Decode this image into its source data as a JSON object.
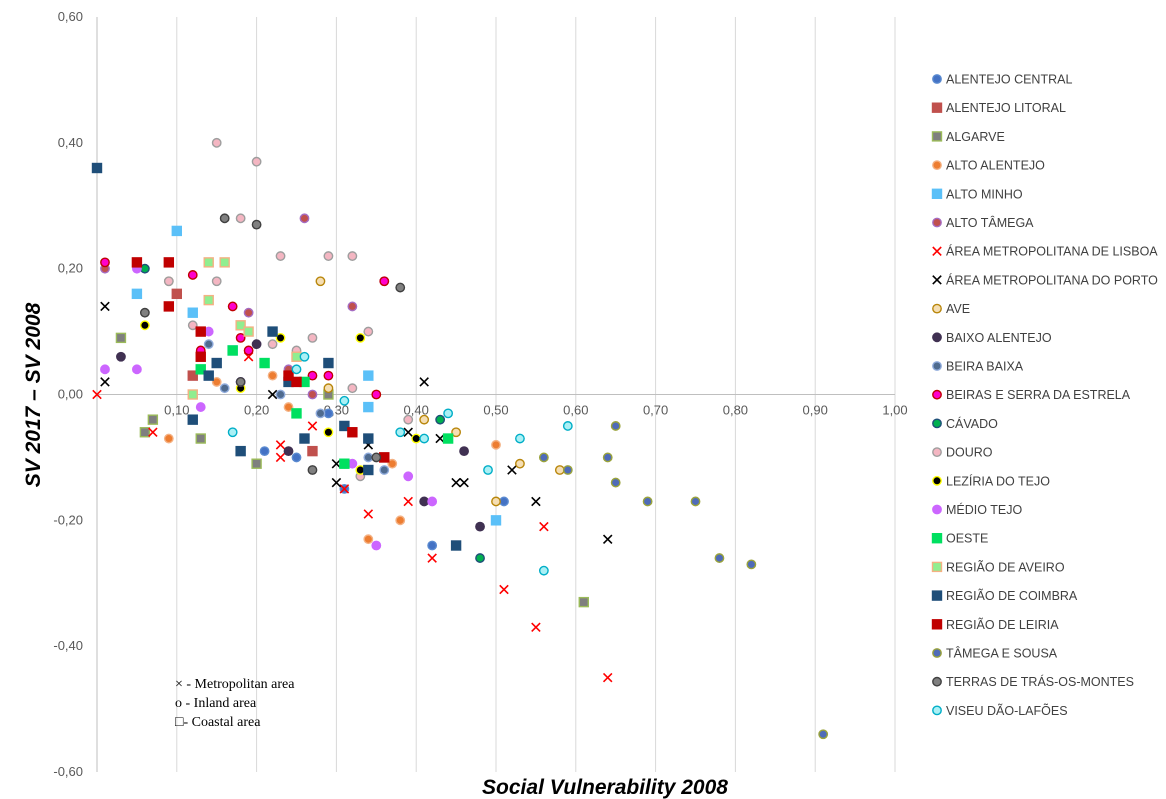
{
  "chart_data": {
    "type": "scatter",
    "title": "",
    "xlabel": "Social Vulnerability 2008",
    "ylabel": "SV 2017 – SV 2008",
    "xlim": [
      0,
      1
    ],
    "ylim": [
      -0.6,
      0.6
    ],
    "x_ticks": [
      "0,00",
      "0,10",
      "0,20",
      "0,30",
      "0,40",
      "0,50",
      "0,60",
      "0,70",
      "0,80",
      "0,90",
      "1,00"
    ],
    "y_ticks": [
      "0,60",
      "0,40",
      "0,20",
      "0,00",
      "-0,20",
      "-0,40",
      "-0,60"
    ],
    "grid": "vertical",
    "legend_position": "right",
    "notes": [
      "× - Metropolitan area",
      "o - Inland area",
      "□- Coastal area"
    ],
    "series": [
      {
        "name": "ALENTEJO CENTRAL",
        "marker": "circle",
        "color": "#4472c4",
        "stroke": "#5a8ad0",
        "points": [
          [
            0.12,
            0.03
          ],
          [
            0.21,
            -0.09
          ],
          [
            0.31,
            -0.15
          ],
          [
            0.42,
            -0.24
          ],
          [
            0.51,
            -0.17
          ],
          [
            0.25,
            -0.1
          ],
          [
            0.18,
            0.02
          ],
          [
            0.29,
            -0.03
          ]
        ]
      },
      {
        "name": "ALENTEJO LITORAL",
        "marker": "square",
        "color": "#c0504d",
        "stroke": "#c0504d",
        "points": [
          [
            0.1,
            0.16
          ],
          [
            0.36,
            -0.1
          ],
          [
            0.27,
            -0.09
          ],
          [
            0.12,
            0.03
          ]
        ]
      },
      {
        "name": "ALGARVE",
        "marker": "square",
        "color": "#7f7f7f",
        "stroke": "#9bbb59",
        "points": [
          [
            0.03,
            0.09
          ],
          [
            0.07,
            -0.04
          ],
          [
            0.13,
            -0.07
          ],
          [
            0.2,
            -0.11
          ],
          [
            0.29,
            0.0
          ],
          [
            0.61,
            -0.33
          ],
          [
            0.06,
            -0.06
          ]
        ]
      },
      {
        "name": "ALTO ALENTEJO",
        "marker": "circle",
        "color": "#ed7d31",
        "stroke": "#f4b183",
        "points": [
          [
            0.09,
            0.18
          ],
          [
            0.22,
            0.03
          ],
          [
            0.34,
            -0.23
          ],
          [
            0.38,
            -0.2
          ],
          [
            0.5,
            -0.08
          ],
          [
            0.09,
            -0.07
          ],
          [
            0.15,
            0.02
          ],
          [
            0.37,
            -0.11
          ],
          [
            0.24,
            -0.02
          ]
        ]
      },
      {
        "name": "ALTO MINHO",
        "marker": "square",
        "color": "#5bc0f8",
        "stroke": "#5bc0f8",
        "points": [
          [
            0.1,
            0.26
          ],
          [
            0.05,
            0.16
          ],
          [
            0.12,
            0.13
          ],
          [
            0.34,
            0.03
          ],
          [
            0.5,
            -0.2
          ],
          [
            0.17,
            0.07
          ],
          [
            0.34,
            -0.02
          ]
        ]
      },
      {
        "name": "ALTO TÂMEGA",
        "marker": "circle",
        "color": "#c0504d",
        "stroke": "#a56cc1",
        "points": [
          [
            0.26,
            0.28
          ],
          [
            0.01,
            0.2
          ],
          [
            0.36,
            0.18
          ],
          [
            0.19,
            0.13
          ],
          [
            0.32,
            0.14
          ],
          [
            0.24,
            0.04
          ],
          [
            0.27,
            0.0
          ]
        ]
      },
      {
        "name": "ÁREA METROPOLITANA DE LISBOA",
        "marker": "x",
        "color": "#ff0000",
        "stroke": "#ff0000",
        "points": [
          [
            0.0,
            0.0
          ],
          [
            0.07,
            -0.06
          ],
          [
            0.19,
            0.06
          ],
          [
            0.23,
            -0.1
          ],
          [
            0.31,
            -0.15
          ],
          [
            0.34,
            -0.19
          ],
          [
            0.39,
            -0.17
          ],
          [
            0.42,
            -0.26
          ],
          [
            0.51,
            -0.31
          ],
          [
            0.56,
            -0.21
          ],
          [
            0.55,
            -0.37
          ],
          [
            0.64,
            -0.45
          ],
          [
            0.23,
            -0.08
          ],
          [
            0.27,
            -0.05
          ]
        ]
      },
      {
        "name": "ÁREA METROPOLITANA DO PORTO",
        "marker": "x",
        "color": "#000000",
        "stroke": "#000000",
        "points": [
          [
            0.01,
            0.14
          ],
          [
            0.01,
            0.02
          ],
          [
            0.22,
            0.0
          ],
          [
            0.3,
            -0.11
          ],
          [
            0.34,
            -0.08
          ],
          [
            0.39,
            -0.06
          ],
          [
            0.41,
            0.02
          ],
          [
            0.43,
            -0.07
          ],
          [
            0.45,
            -0.14
          ],
          [
            0.52,
            -0.12
          ],
          [
            0.55,
            -0.17
          ],
          [
            0.64,
            -0.23
          ],
          [
            0.3,
            -0.14
          ],
          [
            0.46,
            -0.14
          ]
        ]
      },
      {
        "name": "AVE",
        "marker": "circle",
        "color": "#f5deb3",
        "stroke": "#b8860b",
        "points": [
          [
            0.28,
            0.18
          ],
          [
            0.45,
            -0.06
          ],
          [
            0.5,
            -0.17
          ],
          [
            0.53,
            -0.11
          ],
          [
            0.58,
            -0.12
          ],
          [
            0.29,
            0.01
          ],
          [
            0.41,
            -0.04
          ]
        ]
      },
      {
        "name": "BAIXO ALENTEJO",
        "marker": "circle",
        "color": "#403152",
        "stroke": "#403152",
        "points": [
          [
            0.03,
            0.06
          ],
          [
            0.2,
            0.08
          ],
          [
            0.26,
            -0.07
          ],
          [
            0.41,
            -0.17
          ],
          [
            0.48,
            -0.21
          ],
          [
            0.46,
            -0.09
          ],
          [
            0.24,
            -0.09
          ]
        ]
      },
      {
        "name": "BEIRA BAIXA",
        "marker": "circle",
        "color": "#4f6b8f",
        "stroke": "#8eaadb",
        "points": [
          [
            0.16,
            0.01
          ],
          [
            0.23,
            0.0
          ],
          [
            0.28,
            -0.03
          ],
          [
            0.34,
            -0.1
          ],
          [
            0.36,
            -0.12
          ],
          [
            0.14,
            0.08
          ]
        ]
      },
      {
        "name": "BEIRAS E SERRA DA ESTRELA",
        "marker": "circle",
        "color": "#ff00cc",
        "stroke": "#c00000",
        "points": [
          [
            0.01,
            0.21
          ],
          [
            0.12,
            0.19
          ],
          [
            0.13,
            0.07
          ],
          [
            0.17,
            0.14
          ],
          [
            0.19,
            0.07
          ],
          [
            0.27,
            0.03
          ],
          [
            0.36,
            0.18
          ],
          [
            0.35,
            0.0
          ],
          [
            0.18,
            0.09
          ],
          [
            0.29,
            0.03
          ]
        ]
      },
      {
        "name": "CÁVADO",
        "marker": "circle",
        "color": "#00b050",
        "stroke": "#1f4e79",
        "points": [
          [
            0.06,
            0.2
          ],
          [
            0.43,
            -0.04
          ],
          [
            0.48,
            -0.26
          ],
          [
            0.44,
            -0.07
          ],
          [
            0.31,
            -0.11
          ]
        ]
      },
      {
        "name": "DOURO",
        "marker": "circle",
        "color": "#f4b6c2",
        "stroke": "#9e9e9e",
        "points": [
          [
            0.15,
            0.4
          ],
          [
            0.2,
            0.37
          ],
          [
            0.18,
            0.28
          ],
          [
            0.23,
            0.22
          ],
          [
            0.29,
            0.22
          ],
          [
            0.32,
            0.22
          ],
          [
            0.34,
            0.1
          ],
          [
            0.15,
            0.18
          ],
          [
            0.25,
            0.07
          ],
          [
            0.32,
            0.01
          ],
          [
            0.09,
            0.18
          ],
          [
            0.22,
            0.08
          ],
          [
            0.27,
            0.09
          ],
          [
            0.12,
            0.11
          ],
          [
            0.33,
            -0.13
          ],
          [
            0.39,
            -0.04
          ]
        ]
      },
      {
        "name": "LEZÍRIA DO TEJO",
        "marker": "circle",
        "color": "#000000",
        "stroke": "#ffff00",
        "points": [
          [
            0.06,
            0.11
          ],
          [
            0.18,
            0.01
          ],
          [
            0.23,
            0.09
          ],
          [
            0.33,
            0.09
          ],
          [
            0.4,
            -0.07
          ],
          [
            0.29,
            -0.06
          ],
          [
            0.33,
            -0.12
          ],
          [
            0.15,
            0.05
          ]
        ]
      },
      {
        "name": "MÉDIO TEJO",
        "marker": "circle",
        "color": "#cc66ff",
        "stroke": "#cc66ff",
        "points": [
          [
            0.05,
            0.2
          ],
          [
            0.01,
            0.04
          ],
          [
            0.05,
            0.04
          ],
          [
            0.14,
            0.1
          ],
          [
            0.35,
            -0.24
          ],
          [
            0.42,
            -0.17
          ],
          [
            0.39,
            -0.13
          ],
          [
            0.13,
            -0.02
          ],
          [
            0.32,
            -0.11
          ],
          [
            0.18,
            0.02
          ]
        ]
      },
      {
        "name": "OESTE",
        "marker": "square",
        "color": "#00e060",
        "stroke": "#00e060",
        "points": [
          [
            0.21,
            0.05
          ],
          [
            0.25,
            -0.03
          ],
          [
            0.31,
            -0.11
          ],
          [
            0.17,
            0.07
          ],
          [
            0.26,
            0.02
          ],
          [
            0.44,
            -0.07
          ],
          [
            0.13,
            0.04
          ]
        ]
      },
      {
        "name": "REGIÃO DE AVEIRO",
        "marker": "square",
        "color": "#90ee90",
        "stroke": "#f4b183",
        "points": [
          [
            0.14,
            0.21
          ],
          [
            0.16,
            0.21
          ],
          [
            0.14,
            0.15
          ],
          [
            0.18,
            0.11
          ],
          [
            0.25,
            0.06
          ],
          [
            0.12,
            0.0
          ],
          [
            0.19,
            0.1
          ]
        ]
      },
      {
        "name": "REGIÃO DE COIMBRA",
        "marker": "square",
        "color": "#1f4e79",
        "stroke": "#1f4e79",
        "points": [
          [
            0.0,
            0.36
          ],
          [
            0.15,
            0.05
          ],
          [
            0.22,
            0.1
          ],
          [
            0.29,
            0.05
          ],
          [
            0.24,
            0.02
          ],
          [
            0.31,
            -0.05
          ],
          [
            0.34,
            -0.07
          ],
          [
            0.34,
            -0.12
          ],
          [
            0.45,
            -0.24
          ],
          [
            0.18,
            -0.09
          ],
          [
            0.26,
            -0.07
          ],
          [
            0.12,
            -0.04
          ],
          [
            0.14,
            0.03
          ]
        ]
      },
      {
        "name": "REGIÃO DE LEIRIA",
        "marker": "square",
        "color": "#c00000",
        "stroke": "#c00000",
        "points": [
          [
            0.05,
            0.21
          ],
          [
            0.09,
            0.21
          ],
          [
            0.09,
            0.14
          ],
          [
            0.13,
            0.1
          ],
          [
            0.13,
            0.06
          ],
          [
            0.24,
            0.03
          ],
          [
            0.32,
            -0.06
          ],
          [
            0.25,
            0.02
          ],
          [
            0.36,
            -0.1
          ]
        ]
      },
      {
        "name": "TÂMEGA E SOUSA",
        "marker": "circle",
        "color": "#4f6bb8",
        "stroke": "#9aa33b",
        "points": [
          [
            0.56,
            -0.1
          ],
          [
            0.65,
            -0.05
          ],
          [
            0.64,
            -0.1
          ],
          [
            0.65,
            -0.14
          ],
          [
            0.69,
            -0.17
          ],
          [
            0.75,
            -0.17
          ],
          [
            0.78,
            -0.26
          ],
          [
            0.82,
            -0.27
          ],
          [
            0.91,
            -0.54
          ],
          [
            0.59,
            -0.12
          ]
        ]
      },
      {
        "name": "TERRAS DE TRÁS-OS-MONTES",
        "marker": "circle",
        "color": "#808080",
        "stroke": "#404040",
        "points": [
          [
            0.16,
            0.28
          ],
          [
            0.2,
            0.27
          ],
          [
            0.38,
            0.17
          ],
          [
            0.06,
            0.13
          ],
          [
            0.35,
            -0.1
          ],
          [
            0.18,
            0.02
          ],
          [
            0.27,
            -0.12
          ]
        ]
      },
      {
        "name": "VISEU DÃO-LAFÕES",
        "marker": "circle",
        "color": "#aaf0f5",
        "stroke": "#00aec7",
        "points": [
          [
            0.59,
            -0.05
          ],
          [
            0.53,
            -0.07
          ],
          [
            0.49,
            -0.12
          ],
          [
            0.56,
            -0.28
          ],
          [
            0.17,
            -0.06
          ],
          [
            0.26,
            0.06
          ],
          [
            0.38,
            -0.06
          ],
          [
            0.44,
            -0.03
          ],
          [
            0.41,
            -0.07
          ],
          [
            0.31,
            -0.01
          ],
          [
            0.25,
            0.04
          ]
        ]
      }
    ]
  }
}
